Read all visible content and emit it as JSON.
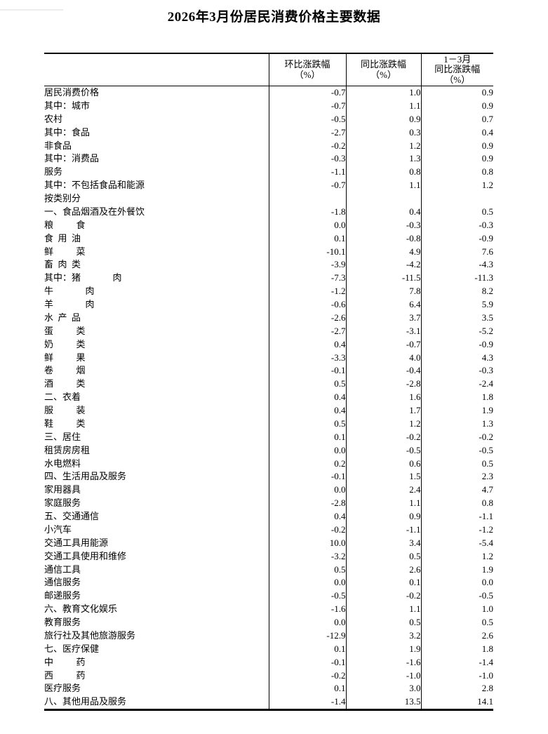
{
  "title": "2026年3月份居民消费价格主要数据",
  "colors": {
    "background": "#ffffff",
    "text": "#000000",
    "border": "#000000"
  },
  "table": {
    "header": {
      "row_label": "",
      "col1": "环比涨跌幅\n（%）",
      "col2": "同比涨跌幅\n（%）",
      "col3": "1－3月\n同比涨跌幅\n（%）"
    },
    "rows": [
      {
        "label": "居民消费价格",
        "indent": 0,
        "mom": "-0.7",
        "yoy": "1.0",
        "ytd": "0.9"
      },
      {
        "label": "其中：城市",
        "indent": 1,
        "mom": "-0.7",
        "yoy": "1.1",
        "ytd": "0.9"
      },
      {
        "label": "农村",
        "indent": 2,
        "mom": "-0.5",
        "yoy": "0.9",
        "ytd": "0.7"
      },
      {
        "label": "其中：食品",
        "indent": 1,
        "mom": "-2.7",
        "yoy": "0.3",
        "ytd": "0.4"
      },
      {
        "label": "非食品",
        "indent": 2,
        "mom": "-0.2",
        "yoy": "1.2",
        "ytd": "0.9"
      },
      {
        "label": "其中：消费品",
        "indent": 1,
        "mom": "-0.3",
        "yoy": "1.3",
        "ytd": "0.9"
      },
      {
        "label": "服务",
        "indent": 2,
        "mom": "-1.1",
        "yoy": "0.8",
        "ytd": "0.8"
      },
      {
        "label": "其中：不包括食品和能源",
        "indent": 1,
        "mom": "-0.7",
        "yoy": "1.1",
        "ytd": "1.2"
      },
      {
        "label": "按类别分",
        "indent": 0,
        "mom": "",
        "yoy": "",
        "ytd": ""
      },
      {
        "label": "一、食品烟酒及在外餐饮",
        "indent": 0,
        "mom": "-1.8",
        "yoy": "0.4",
        "ytd": "0.5"
      },
      {
        "label": "粮          食",
        "indent": 3,
        "mom": "0.0",
        "yoy": "-0.3",
        "ytd": "-0.3"
      },
      {
        "label": "食  用  油",
        "indent": 3,
        "mom": "0.1",
        "yoy": "-0.8",
        "ytd": "-0.9"
      },
      {
        "label": "鲜          菜",
        "indent": 3,
        "mom": "-10.1",
        "yoy": "4.9",
        "ytd": "7.6"
      },
      {
        "label": "畜  肉  类",
        "indent": 3,
        "mom": "-3.9",
        "yoy": "-4.2",
        "ytd": "-4.3"
      },
      {
        "label": "其中：猪              肉",
        "indent": 4,
        "mom": "-7.3",
        "yoy": "-11.5",
        "ytd": "-11.3"
      },
      {
        "label": "牛              肉",
        "indent": 5,
        "mom": "-1.2",
        "yoy": "7.8",
        "ytd": "8.2"
      },
      {
        "label": "羊              肉",
        "indent": 5,
        "mom": "-0.6",
        "yoy": "6.4",
        "ytd": "5.9"
      },
      {
        "label": "水  产  品",
        "indent": 3,
        "mom": "-2.6",
        "yoy": "3.7",
        "ytd": "3.5"
      },
      {
        "label": "蛋          类",
        "indent": 3,
        "mom": "-2.7",
        "yoy": "-3.1",
        "ytd": "-5.2"
      },
      {
        "label": "奶          类",
        "indent": 3,
        "mom": "0.4",
        "yoy": "-0.7",
        "ytd": "-0.9"
      },
      {
        "label": "鲜          果",
        "indent": 3,
        "mom": "-3.3",
        "yoy": "4.0",
        "ytd": "4.3"
      },
      {
        "label": "卷          烟",
        "indent": 3,
        "mom": "-0.1",
        "yoy": "-0.4",
        "ytd": "-0.3"
      },
      {
        "label": "酒          类",
        "indent": 3,
        "mom": "0.5",
        "yoy": "-2.8",
        "ytd": "-2.4"
      },
      {
        "label": "二、衣着",
        "indent": 0,
        "mom": "0.4",
        "yoy": "1.6",
        "ytd": "1.8"
      },
      {
        "label": "服          装",
        "indent": 3,
        "mom": "0.4",
        "yoy": "1.7",
        "ytd": "1.9"
      },
      {
        "label": "鞋          类",
        "indent": 3,
        "mom": "0.5",
        "yoy": "1.2",
        "ytd": "1.3"
      },
      {
        "label": "三、居住",
        "indent": 0,
        "mom": "0.1",
        "yoy": "-0.2",
        "ytd": "-0.2"
      },
      {
        "label": "租赁房房租",
        "indent": 3,
        "mom": "0.0",
        "yoy": "-0.5",
        "ytd": "-0.5"
      },
      {
        "label": "水电燃料",
        "indent": 3,
        "mom": "0.2",
        "yoy": "0.6",
        "ytd": "0.5"
      },
      {
        "label": "四、生活用品及服务",
        "indent": 0,
        "mom": "-0.1",
        "yoy": "1.5",
        "ytd": "2.3"
      },
      {
        "label": "家用器具",
        "indent": 3,
        "mom": "0.0",
        "yoy": "2.4",
        "ytd": "4.7"
      },
      {
        "label": "家庭服务",
        "indent": 3,
        "mom": "-2.8",
        "yoy": "1.1",
        "ytd": "0.8"
      },
      {
        "label": "五、交通通信",
        "indent": 0,
        "mom": "0.4",
        "yoy": "0.9",
        "ytd": "-1.1"
      },
      {
        "label": "小汽车",
        "indent": 3,
        "mom": "-0.2",
        "yoy": "-1.1",
        "ytd": "-1.2"
      },
      {
        "label": "交通工具用能源",
        "indent": 3,
        "mom": "10.0",
        "yoy": "3.4",
        "ytd": "-5.4"
      },
      {
        "label": "交通工具使用和维修",
        "indent": 3,
        "mom": "-3.2",
        "yoy": "0.5",
        "ytd": "1.2"
      },
      {
        "label": "通信工具",
        "indent": 3,
        "mom": "0.5",
        "yoy": "2.6",
        "ytd": "1.9"
      },
      {
        "label": "通信服务",
        "indent": 3,
        "mom": "0.0",
        "yoy": "0.1",
        "ytd": "0.0"
      },
      {
        "label": "邮递服务",
        "indent": 3,
        "mom": "-0.5",
        "yoy": "-0.2",
        "ytd": "-0.5"
      },
      {
        "label": "六、教育文化娱乐",
        "indent": 0,
        "mom": "-1.6",
        "yoy": "1.1",
        "ytd": "1.0"
      },
      {
        "label": "教育服务",
        "indent": 3,
        "mom": "0.0",
        "yoy": "0.5",
        "ytd": "0.5"
      },
      {
        "label": "旅行社及其他旅游服务",
        "indent": 3,
        "mom": "-12.9",
        "yoy": "3.2",
        "ytd": "2.6"
      },
      {
        "label": "七、医疗保健",
        "indent": 0,
        "mom": "0.1",
        "yoy": "1.9",
        "ytd": "1.8"
      },
      {
        "label": "中          药",
        "indent": 3,
        "mom": "-0.1",
        "yoy": "-1.6",
        "ytd": "-1.4"
      },
      {
        "label": "西          药",
        "indent": 3,
        "mom": "-0.2",
        "yoy": "-1.0",
        "ytd": "-1.0"
      },
      {
        "label": "医疗服务",
        "indent": 3,
        "mom": "0.1",
        "yoy": "3.0",
        "ytd": "2.8"
      },
      {
        "label": "八、其他用品及服务",
        "indent": 0,
        "mom": "-1.4",
        "yoy": "13.5",
        "ytd": "14.1"
      }
    ]
  }
}
